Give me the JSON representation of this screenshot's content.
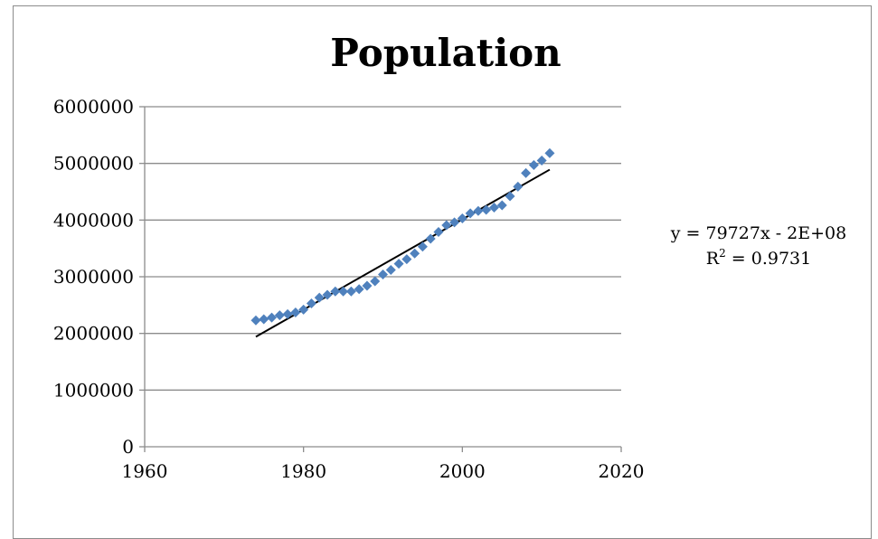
{
  "chart_data": {
    "type": "scatter",
    "title": "Population",
    "xlabel": "",
    "ylabel": "",
    "xlim": [
      1960,
      2020
    ],
    "ylim": [
      0,
      6000000
    ],
    "x_ticks": [
      "1960",
      "1980",
      "2000",
      "2020"
    ],
    "y_ticks": [
      "0",
      "1000000",
      "2000000",
      "3000000",
      "4000000",
      "5000000",
      "6000000"
    ],
    "grid": "horizontal",
    "legend": "none",
    "marker_color": "#4F81BD",
    "trendline_color": "#000000",
    "series": [
      {
        "x": [
          1974,
          1975,
          1976,
          1977,
          1978,
          1979,
          1980,
          1981,
          1982,
          1983,
          1984,
          1985,
          1986,
          1987,
          1988,
          1989,
          1990,
          1991,
          1992,
          1993,
          1994,
          1995,
          1996,
          1997,
          1998,
          1999,
          2000,
          2001,
          2002,
          2003,
          2004,
          2005,
          2006,
          2007,
          2008,
          2009,
          2010,
          2011
        ],
        "y": [
          2230000,
          2250000,
          2280000,
          2320000,
          2340000,
          2370000,
          2420000,
          2530000,
          2630000,
          2680000,
          2740000,
          2740000,
          2740000,
          2780000,
          2840000,
          2920000,
          3040000,
          3120000,
          3230000,
          3310000,
          3410000,
          3530000,
          3670000,
          3790000,
          3910000,
          3960000,
          4030000,
          4120000,
          4160000,
          4180000,
          4220000,
          4260000,
          4420000,
          4590000,
          4830000,
          4970000,
          5050000,
          5180000
        ]
      }
    ],
    "trendline": {
      "x": [
        1974,
        2011
      ],
      "y": [
        1940000,
        4890000
      ]
    },
    "annotation": {
      "equation": "y = 79727x - 2E+08",
      "r_squared_label": "R",
      "r_squared_exp": "2",
      "r_squared_value": " = 0.9731"
    }
  }
}
